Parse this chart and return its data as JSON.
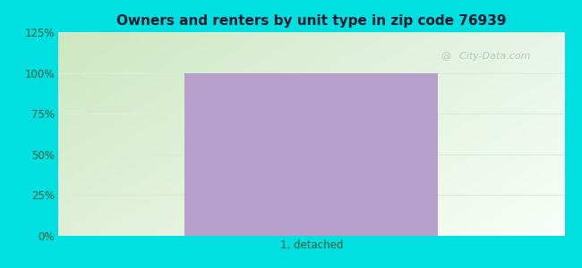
{
  "title": "Owners and renters by unit type in zip code 76939",
  "categories": [
    "1, detached"
  ],
  "values": [
    100
  ],
  "bar_color": "#b8a0cc",
  "bar_width": 0.5,
  "ylim": [
    0,
    125
  ],
  "yticks": [
    0,
    25,
    50,
    75,
    100,
    125
  ],
  "ytick_labels": [
    "0%",
    "25%",
    "50%",
    "75%",
    "100%",
    "125%"
  ],
  "outer_bg": "#00e0e0",
  "grid_color": "#d8eed8",
  "title_color": "#1a1a2e",
  "tick_color": "#3a5a3a",
  "title_fontsize": 11,
  "tick_fontsize": 8.5,
  "watermark": "  City-Data.com",
  "watermark_color": "#a8c8c0",
  "bg_color_topleft": "#cce8c0",
  "bg_color_topright": "#e8f4e8",
  "bg_color_bottomleft": "#e0f0d8",
  "bg_color_bottomright": "#f8fef8"
}
